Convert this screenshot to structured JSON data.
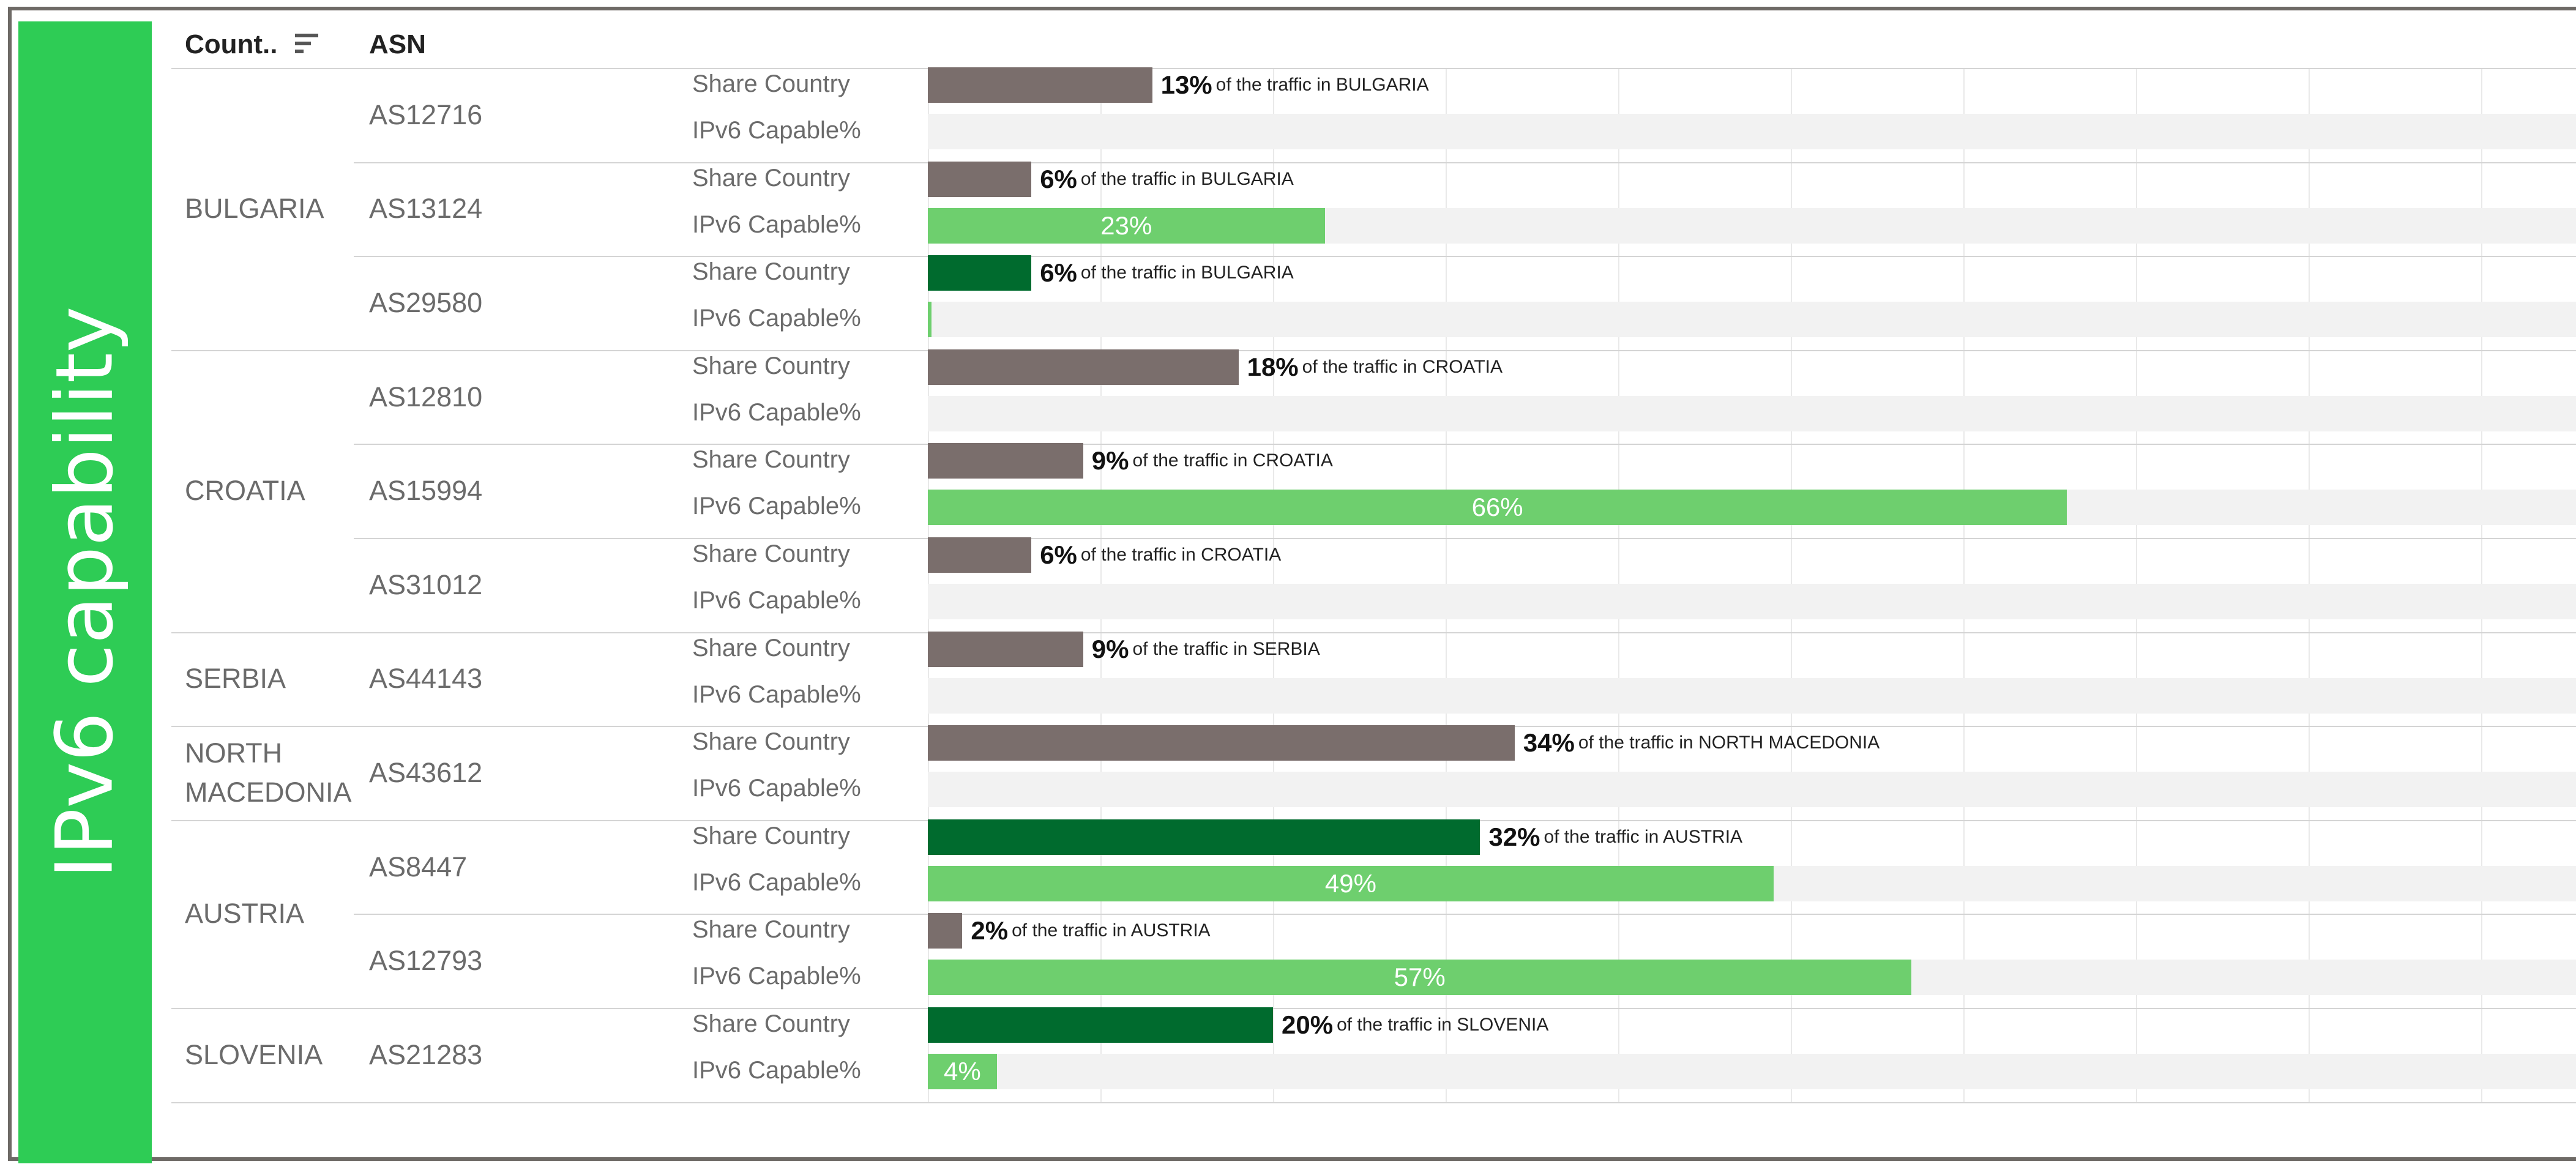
{
  "sidebar": {
    "title": "IPv6 capability"
  },
  "header": {
    "country_col": "Count..",
    "asn_col": "ASN"
  },
  "colors": {
    "sidebar": "#2ecc55",
    "share_bar": "#7a6e6c",
    "share_bar_highlight": "#006b2e",
    "ipv6_bar": "#6ecf6e",
    "band": "#f2f2f2"
  },
  "chart_data": {
    "type": "bar",
    "orientation": "horizontal",
    "measures": [
      "Share Country",
      "IPv6 Capable%"
    ],
    "xlim": [
      0,
      100
    ],
    "unit": "%",
    "traffic_text": "of the traffic in",
    "rows": [
      {
        "country": "BULGARIA",
        "asn": "AS12716",
        "share": 13,
        "ipv6": 0,
        "share_highlight": false
      },
      {
        "country": "BULGARIA",
        "asn": "AS13124",
        "share": 6,
        "ipv6": 23,
        "share_highlight": false
      },
      {
        "country": "BULGARIA",
        "asn": "AS29580",
        "share": 6,
        "ipv6": 0.2,
        "share_highlight": true
      },
      {
        "country": "CROATIA",
        "asn": "AS12810",
        "share": 18,
        "ipv6": 0,
        "share_highlight": false
      },
      {
        "country": "CROATIA",
        "asn": "AS15994",
        "share": 9,
        "ipv6": 66,
        "share_highlight": false
      },
      {
        "country": "CROATIA",
        "asn": "AS31012",
        "share": 6,
        "ipv6": 0,
        "share_highlight": false
      },
      {
        "country": "SERBIA",
        "asn": "AS44143",
        "share": 9,
        "ipv6": 0,
        "share_highlight": false
      },
      {
        "country": "NORTH MACEDONIA",
        "asn": "AS43612",
        "share": 34,
        "ipv6": 0,
        "share_highlight": false
      },
      {
        "country": "AUSTRIA",
        "asn": "AS8447",
        "share": 32,
        "ipv6": 49,
        "share_highlight": true
      },
      {
        "country": "AUSTRIA",
        "asn": "AS12793",
        "share": 2,
        "ipv6": 57,
        "share_highlight": false
      },
      {
        "country": "SLOVENIA",
        "asn": "AS21283",
        "share": 20,
        "ipv6": 4,
        "share_highlight": true
      }
    ],
    "country_labels": [
      "BULGARIA",
      "CROATIA",
      "SERBIA",
      "NORTH",
      "MACEDONIA",
      "AUSTRIA",
      "SLOVENIA"
    ],
    "ipv6_labels": [
      null,
      "23%",
      null,
      null,
      "66%",
      null,
      null,
      null,
      "49%",
      "57%",
      "4%"
    ]
  }
}
